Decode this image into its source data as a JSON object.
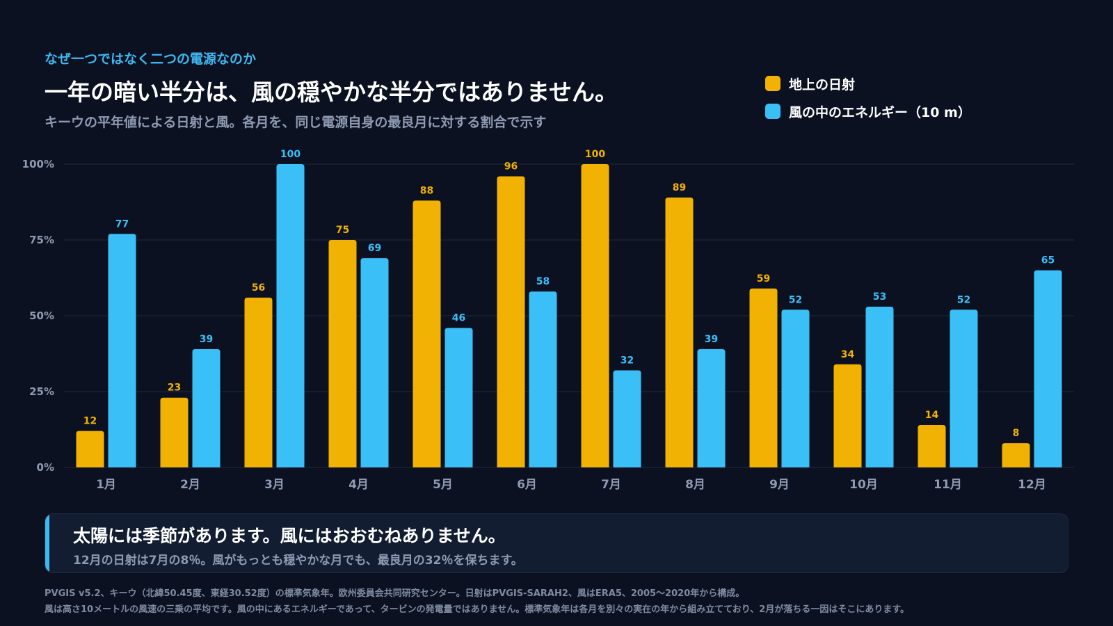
{
  "header": {
    "kicker": "なぜ一つではなく二つの電源なのか",
    "title": "一年の暗い半分は、風の穏やかな半分ではありません。",
    "subtitle": "キーウの平年値による日射と風。各月を、同じ電源自身の最良月に対する割合で示す"
  },
  "colors": {
    "solar": "#f2b203",
    "wind": "#3bbff7",
    "grid": "#1e2a3d",
    "axis_text": "#8f9bb3",
    "background": "#0b1120"
  },
  "legend": [
    {
      "label": "地上の日射",
      "color": "#f2b203"
    },
    {
      "label": "風の中のエネルギー（10 m）",
      "color": "#3bbff7"
    }
  ],
  "chart_data": {
    "type": "bar",
    "categories": [
      "1月",
      "2月",
      "3月",
      "4月",
      "5月",
      "6月",
      "7月",
      "8月",
      "9月",
      "10月",
      "11月",
      "12月"
    ],
    "series": [
      {
        "name": "地上の日射",
        "color": "#f2b203",
        "values": [
          12,
          23,
          56,
          75,
          88,
          96,
          100,
          89,
          59,
          34,
          14,
          8
        ]
      },
      {
        "name": "風の中のエネルギー（10 m）",
        "color": "#3bbff7",
        "values": [
          77,
          39,
          100,
          69,
          46,
          58,
          32,
          39,
          52,
          53,
          52,
          65
        ]
      }
    ],
    "ylim": [
      0,
      100
    ],
    "yticks": [
      0,
      25,
      50,
      75,
      100
    ],
    "ytick_labels": [
      "0%",
      "25%",
      "50%",
      "75%",
      "100%"
    ],
    "grid": true,
    "legend_position": "top-right"
  },
  "callout": {
    "headline": "太陽には季節があります。風にはおおむねありません。",
    "body": "12月の日射は7月の8％。風がもっとも穏やかな月でも、最良月の32％を保ちます。"
  },
  "footnotes": [
    "PVGIS v5.2、キーウ（北緯50.45度、東経30.52度）の標準気象年。欧州委員会共同研究センター。日射はPVGIS-SARAH2、風はERA5、2005〜2020年から構成。",
    "風は高さ10メートルの風速の三乗の平均です。風の中にあるエネルギーであって、タービンの発電量ではありません。標準気象年は各月を別々の実在の年から組み立てており、2月が落ちる一因はそこにあります。"
  ]
}
